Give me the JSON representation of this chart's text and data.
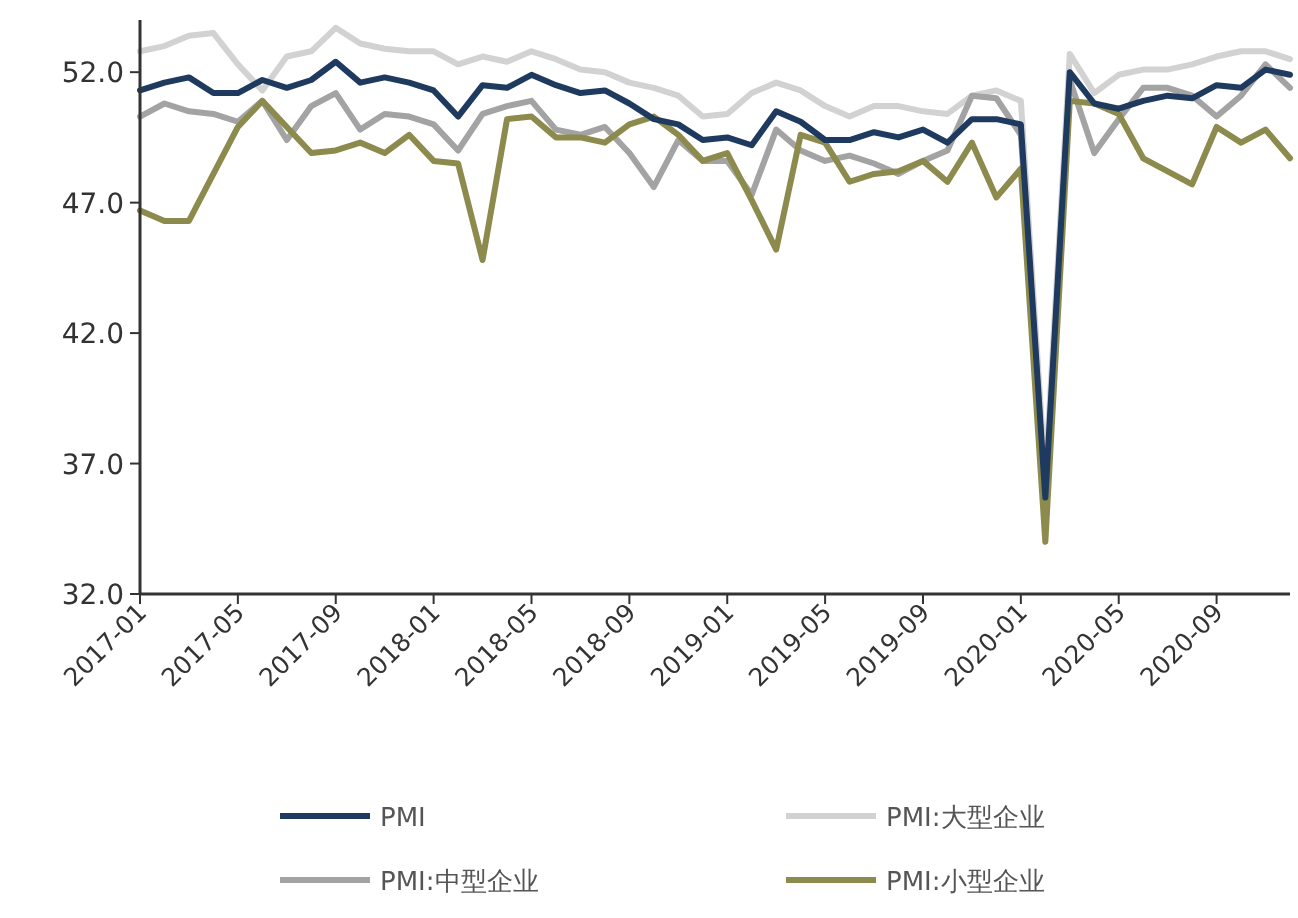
{
  "chart_data": {
    "type": "line",
    "x": [
      "2017-01",
      "2017-02",
      "2017-03",
      "2017-04",
      "2017-05",
      "2017-06",
      "2017-07",
      "2017-08",
      "2017-09",
      "2017-10",
      "2017-11",
      "2017-12",
      "2018-01",
      "2018-02",
      "2018-03",
      "2018-04",
      "2018-05",
      "2018-06",
      "2018-07",
      "2018-08",
      "2018-09",
      "2018-10",
      "2018-11",
      "2018-12",
      "2019-01",
      "2019-02",
      "2019-03",
      "2019-04",
      "2019-05",
      "2019-06",
      "2019-07",
      "2019-08",
      "2019-09",
      "2019-10",
      "2019-11",
      "2019-12",
      "2020-01",
      "2020-02",
      "2020-03",
      "2020-04",
      "2020-05",
      "2020-06",
      "2020-07",
      "2020-08",
      "2020-09",
      "2020-10",
      "2020-11",
      "2020-12"
    ],
    "series": [
      {
        "name": "PMI:大型企业",
        "color": "#d2d2d2",
        "values": [
          52.8,
          53.0,
          53.4,
          53.5,
          52.3,
          51.3,
          52.6,
          52.8,
          53.7,
          53.1,
          52.9,
          52.8,
          52.8,
          52.3,
          52.6,
          52.4,
          52.8,
          52.5,
          52.1,
          52.0,
          51.6,
          51.4,
          51.1,
          50.3,
          50.4,
          51.2,
          51.6,
          51.3,
          50.7,
          50.3,
          50.7,
          50.7,
          50.5,
          50.4,
          51.1,
          51.3,
          50.9,
          36.4,
          52.7,
          51.2,
          51.9,
          52.1,
          52.1,
          52.3,
          52.6,
          52.8,
          52.8,
          52.5
        ]
      },
      {
        "name": "PMI:中型企业",
        "color": "#a3a3a3",
        "values": [
          50.3,
          50.8,
          50.5,
          50.4,
          50.1,
          50.9,
          49.4,
          50.7,
          51.2,
          49.8,
          50.4,
          50.3,
          50.0,
          49.0,
          50.4,
          50.7,
          50.9,
          49.8,
          49.6,
          49.9,
          48.9,
          47.6,
          49.4,
          48.6,
          48.6,
          47.3,
          49.8,
          49.0,
          48.6,
          48.8,
          48.5,
          48.1,
          48.6,
          49.0,
          51.1,
          51.0,
          49.6,
          35.5,
          51.7,
          48.9,
          50.2,
          51.4,
          51.4,
          51.1,
          50.3,
          51.1,
          52.3,
          51.4
        ]
      },
      {
        "name": "PMI:小型企业",
        "color": "#8c8a4c",
        "values": [
          46.7,
          46.3,
          46.3,
          48.1,
          49.9,
          50.9,
          49.9,
          48.9,
          49.0,
          49.3,
          48.9,
          49.6,
          48.6,
          48.5,
          44.8,
          50.2,
          50.3,
          49.5,
          49.5,
          49.3,
          50.0,
          50.3,
          49.6,
          48.6,
          48.9,
          47.1,
          45.2,
          49.6,
          49.3,
          47.8,
          48.1,
          48.2,
          48.6,
          47.8,
          49.3,
          47.2,
          48.3,
          34.0,
          50.9,
          50.8,
          50.4,
          48.7,
          48.2,
          47.7,
          49.9,
          49.3,
          49.8,
          48.7
        ]
      },
      {
        "name": "PMI",
        "color": "#1f3a5f",
        "values": [
          51.3,
          51.6,
          51.8,
          51.2,
          51.2,
          51.7,
          51.4,
          51.7,
          52.4,
          51.6,
          51.8,
          51.6,
          51.3,
          50.3,
          51.5,
          51.4,
          51.9,
          51.5,
          51.2,
          51.3,
          50.8,
          50.2,
          50.0,
          49.4,
          49.5,
          49.2,
          50.5,
          50.1,
          49.4,
          49.4,
          49.7,
          49.5,
          49.8,
          49.3,
          50.2,
          50.2,
          50.0,
          35.7,
          52.0,
          50.8,
          50.6,
          50.9,
          51.1,
          51.0,
          51.5,
          51.4,
          52.1,
          51.9
        ]
      }
    ],
    "xlim": [
      "2017-01",
      "2020-12"
    ],
    "xticks": [
      "2017-01",
      "2017-05",
      "2017-09",
      "2018-01",
      "2018-05",
      "2018-09",
      "2019-01",
      "2019-05",
      "2019-09",
      "2020-01",
      "2020-05",
      "2020-09"
    ],
    "ylim": [
      32,
      54
    ],
    "yticks": [
      {
        "value": 32,
        "label": "32.0"
      },
      {
        "value": 37,
        "label": "37.0"
      },
      {
        "value": 42,
        "label": "42.0"
      },
      {
        "value": 47,
        "label": "47.0"
      },
      {
        "value": 52,
        "label": "52.0"
      }
    ],
    "grid": false,
    "legend": "bottom",
    "marker": "none",
    "line_style": "solid"
  }
}
